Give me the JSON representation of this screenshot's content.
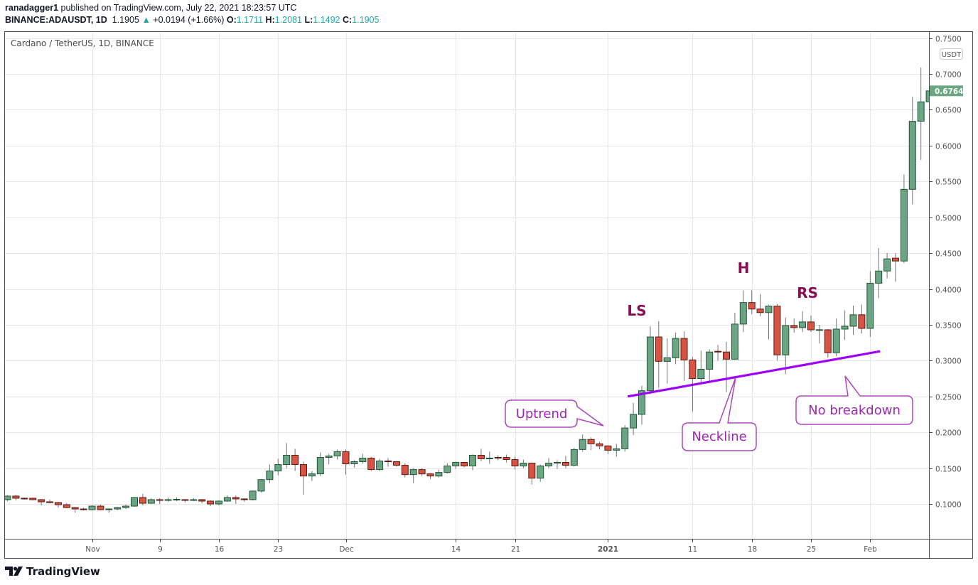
{
  "header": {
    "author": "ranadagger1",
    "published": "published on TradingView.com, July 22, 2021 18:23:57 UTC",
    "symbol": "BINANCE:ADAUSDT, 1D",
    "last": "1.1905",
    "change": "+0.0194 (+1.66%)",
    "o_label": "O:",
    "o": "1.1711",
    "h_label": "H:",
    "h": "1.2081",
    "l_label": "L:",
    "l": "1.1492",
    "c_label": "C:",
    "c": "1.1905",
    "up_icon": "triangle-up-icon"
  },
  "chart_title": "Cardano / TetherUS, 1D, BINANCE",
  "currency": "USDT",
  "last_price_label": "0.6764",
  "logo": "TradingView",
  "colors": {
    "up": "#6ba583",
    "up_border": "#225437",
    "down": "#d75442",
    "down_border": "#5b1a13",
    "wick": "#737375",
    "neckline": "#9c00ff",
    "callout": "#ab47bc",
    "pattern_label": "#880e4f"
  },
  "annotations": {
    "ls": "LS",
    "h": "H",
    "rs": "RS",
    "uptrend": "Uptrend",
    "neckline": "Neckline",
    "no_breakdown": "No breakdown"
  },
  "chart_data": {
    "type": "candlestick",
    "title": "Cardano / TetherUS, 1D, BINANCE",
    "ylim": [
      0.05,
      0.75
    ],
    "grid": true,
    "y_ticks": [
      "0.1000",
      "0.1500",
      "0.2000",
      "0.2500",
      "0.3000",
      "0.3500",
      "0.4000",
      "0.4500",
      "0.5000",
      "0.5500",
      "0.6000",
      "0.6500",
      "0.7000",
      "0.7500"
    ],
    "x_ticks": [
      {
        "label": "Nov",
        "date": "2020-11-01"
      },
      {
        "label": "9",
        "date": "2020-11-09"
      },
      {
        "label": "16",
        "date": "2020-11-16"
      },
      {
        "label": "23",
        "date": "2020-11-23"
      },
      {
        "label": "Dec",
        "date": "2020-12-01"
      },
      {
        "label": "14",
        "date": "2020-12-14"
      },
      {
        "label": "21",
        "date": "2020-12-21"
      },
      {
        "label": "2021",
        "date": "2021-01-01"
      },
      {
        "label": "11",
        "date": "2021-01-11"
      },
      {
        "label": "18",
        "date": "2021-01-18"
      },
      {
        "label": "25",
        "date": "2021-01-25"
      },
      {
        "label": "Feb",
        "date": "2021-02-01"
      }
    ],
    "neckline": [
      [
        "2021-01-04",
        0.25
      ],
      [
        "2021-02-01",
        0.313
      ]
    ],
    "columns": [
      "date",
      "open",
      "high",
      "low",
      "close"
    ],
    "candles": [
      [
        "2020-10-22",
        0.106,
        0.112,
        0.104,
        0.111
      ],
      [
        "2020-10-23",
        0.111,
        0.113,
        0.105,
        0.108
      ],
      [
        "2020-10-24",
        0.108,
        0.109,
        0.106,
        0.107
      ],
      [
        "2020-10-25",
        0.108,
        0.109,
        0.105,
        0.106
      ],
      [
        "2020-10-26",
        0.106,
        0.107,
        0.098,
        0.103
      ],
      [
        "2020-10-27",
        0.103,
        0.106,
        0.101,
        0.102
      ],
      [
        "2020-10-28",
        0.102,
        0.103,
        0.095,
        0.099
      ],
      [
        "2020-10-29",
        0.099,
        0.101,
        0.094,
        0.095
      ],
      [
        "2020-10-30",
        0.095,
        0.096,
        0.088,
        0.093
      ],
      [
        "2020-10-31",
        0.093,
        0.095,
        0.091,
        0.092
      ],
      [
        "2020-11-01",
        0.092,
        0.098,
        0.091,
        0.097
      ],
      [
        "2020-11-02",
        0.097,
        0.099,
        0.091,
        0.092
      ],
      [
        "2020-11-03",
        0.092,
        0.094,
        0.088,
        0.093
      ],
      [
        "2020-11-04",
        0.093,
        0.096,
        0.091,
        0.095
      ],
      [
        "2020-11-05",
        0.095,
        0.099,
        0.093,
        0.097
      ],
      [
        "2020-11-06",
        0.097,
        0.11,
        0.096,
        0.109
      ],
      [
        "2020-11-07",
        0.109,
        0.114,
        0.098,
        0.101
      ],
      [
        "2020-11-08",
        0.101,
        0.108,
        0.1,
        0.106
      ],
      [
        "2020-11-09",
        0.106,
        0.108,
        0.1,
        0.105
      ],
      [
        "2020-11-10",
        0.105,
        0.109,
        0.103,
        0.106
      ],
      [
        "2020-11-11",
        0.106,
        0.109,
        0.104,
        0.1065
      ],
      [
        "2020-11-12",
        0.106,
        0.107,
        0.102,
        0.105
      ],
      [
        "2020-11-13",
        0.105,
        0.108,
        0.104,
        0.106
      ],
      [
        "2020-11-14",
        0.106,
        0.107,
        0.101,
        0.104
      ],
      [
        "2020-11-15",
        0.104,
        0.105,
        0.097,
        0.1
      ],
      [
        "2020-11-16",
        0.1,
        0.105,
        0.098,
        0.104
      ],
      [
        "2020-11-17",
        0.104,
        0.112,
        0.103,
        0.109
      ],
      [
        "2020-11-18",
        0.109,
        0.112,
        0.1,
        0.107
      ],
      [
        "2020-11-19",
        0.107,
        0.108,
        0.103,
        0.106
      ],
      [
        "2020-11-20",
        0.106,
        0.119,
        0.105,
        0.118
      ],
      [
        "2020-11-21",
        0.118,
        0.135,
        0.116,
        0.134
      ],
      [
        "2020-11-22",
        0.134,
        0.155,
        0.129,
        0.146
      ],
      [
        "2020-11-23",
        0.146,
        0.163,
        0.14,
        0.155
      ],
      [
        "2020-11-24",
        0.155,
        0.185,
        0.15,
        0.168
      ],
      [
        "2020-11-25",
        0.168,
        0.177,
        0.146,
        0.155
      ],
      [
        "2020-11-26",
        0.155,
        0.159,
        0.113,
        0.139
      ],
      [
        "2020-11-27",
        0.139,
        0.146,
        0.132,
        0.142
      ],
      [
        "2020-11-28",
        0.142,
        0.172,
        0.139,
        0.165
      ],
      [
        "2020-11-29",
        0.165,
        0.17,
        0.155,
        0.167
      ],
      [
        "2020-11-30",
        0.167,
        0.176,
        0.162,
        0.173
      ],
      [
        "2020-12-01",
        0.173,
        0.176,
        0.141,
        0.156
      ],
      [
        "2020-12-02",
        0.156,
        0.161,
        0.151,
        0.159
      ],
      [
        "2020-12-03",
        0.159,
        0.17,
        0.156,
        0.164
      ],
      [
        "2020-12-04",
        0.164,
        0.166,
        0.146,
        0.148
      ],
      [
        "2020-12-05",
        0.148,
        0.163,
        0.146,
        0.16
      ],
      [
        "2020-12-06",
        0.16,
        0.164,
        0.152,
        0.159
      ],
      [
        "2020-12-07",
        0.159,
        0.16,
        0.152,
        0.154
      ],
      [
        "2020-12-08",
        0.154,
        0.157,
        0.137,
        0.141
      ],
      [
        "2020-12-09",
        0.141,
        0.15,
        0.129,
        0.148
      ],
      [
        "2020-12-10",
        0.148,
        0.15,
        0.139,
        0.142
      ],
      [
        "2020-12-11",
        0.142,
        0.143,
        0.135,
        0.139
      ],
      [
        "2020-12-12",
        0.139,
        0.148,
        0.137,
        0.144
      ],
      [
        "2020-12-13",
        0.144,
        0.157,
        0.142,
        0.153
      ],
      [
        "2020-12-14",
        0.153,
        0.159,
        0.149,
        0.158
      ],
      [
        "2020-12-15",
        0.158,
        0.159,
        0.151,
        0.153
      ],
      [
        "2020-12-16",
        0.153,
        0.169,
        0.147,
        0.168
      ],
      [
        "2020-12-17",
        0.168,
        0.177,
        0.16,
        0.163
      ],
      [
        "2020-12-18",
        0.163,
        0.173,
        0.156,
        0.164
      ],
      [
        "2020-12-19",
        0.165,
        0.168,
        0.161,
        0.164
      ],
      [
        "2020-12-20",
        0.165,
        0.169,
        0.158,
        0.162
      ],
      [
        "2020-12-21",
        0.162,
        0.166,
        0.148,
        0.153
      ],
      [
        "2020-12-22",
        0.153,
        0.162,
        0.15,
        0.157
      ],
      [
        "2020-12-23",
        0.157,
        0.158,
        0.127,
        0.136
      ],
      [
        "2020-12-24",
        0.136,
        0.155,
        0.131,
        0.153
      ],
      [
        "2020-12-25",
        0.153,
        0.164,
        0.15,
        0.157
      ],
      [
        "2020-12-26",
        0.157,
        0.161,
        0.149,
        0.158
      ],
      [
        "2020-12-27",
        0.158,
        0.167,
        0.15,
        0.154
      ],
      [
        "2020-12-28",
        0.154,
        0.178,
        0.152,
        0.176
      ],
      [
        "2020-12-29",
        0.176,
        0.197,
        0.173,
        0.19
      ],
      [
        "2020-12-30",
        0.19,
        0.193,
        0.175,
        0.184
      ],
      [
        "2020-12-31",
        0.184,
        0.187,
        0.176,
        0.181
      ],
      [
        "2021-01-01",
        0.181,
        0.182,
        0.17,
        0.175
      ],
      [
        "2021-01-02",
        0.175,
        0.184,
        0.166,
        0.177
      ],
      [
        "2021-01-03",
        0.177,
        0.21,
        0.173,
        0.206
      ],
      [
        "2021-01-04",
        0.206,
        0.241,
        0.196,
        0.225
      ],
      [
        "2021-01-05",
        0.225,
        0.265,
        0.211,
        0.258
      ],
      [
        "2021-01-06",
        0.258,
        0.348,
        0.253,
        0.333
      ],
      [
        "2021-01-07",
        0.333,
        0.355,
        0.262,
        0.299
      ],
      [
        "2021-01-08",
        0.299,
        0.331,
        0.268,
        0.304
      ],
      [
        "2021-01-09",
        0.304,
        0.339,
        0.295,
        0.331
      ],
      [
        "2021-01-10",
        0.331,
        0.341,
        0.272,
        0.301
      ],
      [
        "2021-01-11",
        0.301,
        0.305,
        0.229,
        0.275
      ],
      [
        "2021-01-12",
        0.275,
        0.314,
        0.267,
        0.288
      ],
      [
        "2021-01-13",
        0.288,
        0.316,
        0.272,
        0.312
      ],
      [
        "2021-01-14",
        0.313,
        0.322,
        0.3,
        0.312
      ],
      [
        "2021-01-15",
        0.312,
        0.326,
        0.256,
        0.302
      ],
      [
        "2021-01-16",
        0.302,
        0.367,
        0.301,
        0.351
      ],
      [
        "2021-01-17",
        0.351,
        0.398,
        0.34,
        0.381
      ],
      [
        "2021-01-18",
        0.381,
        0.398,
        0.365,
        0.372
      ],
      [
        "2021-01-19",
        0.372,
        0.393,
        0.362,
        0.367
      ],
      [
        "2021-01-20",
        0.367,
        0.378,
        0.33,
        0.376
      ],
      [
        "2021-01-21",
        0.376,
        0.379,
        0.3,
        0.308
      ],
      [
        "2021-01-22",
        0.308,
        0.36,
        0.281,
        0.349
      ],
      [
        "2021-01-23",
        0.349,
        0.359,
        0.339,
        0.346
      ],
      [
        "2021-01-24",
        0.346,
        0.369,
        0.34,
        0.354
      ],
      [
        "2021-01-25",
        0.354,
        0.363,
        0.34,
        0.343
      ],
      [
        "2021-01-26",
        0.343,
        0.35,
        0.324,
        0.3432
      ],
      [
        "2021-01-27",
        0.343,
        0.344,
        0.304,
        0.311
      ],
      [
        "2021-01-28",
        0.311,
        0.359,
        0.306,
        0.344
      ],
      [
        "2021-01-29",
        0.344,
        0.37,
        0.329,
        0.348
      ],
      [
        "2021-01-30",
        0.348,
        0.377,
        0.336,
        0.364
      ],
      [
        "2021-01-31",
        0.364,
        0.378,
        0.338,
        0.345
      ],
      [
        "2021-02-01",
        0.345,
        0.425,
        0.333,
        0.408
      ],
      [
        "2021-02-02",
        0.408,
        0.457,
        0.387,
        0.425
      ],
      [
        "2021-02-03",
        0.425,
        0.45,
        0.415,
        0.442
      ],
      [
        "2021-02-04",
        0.443,
        0.45,
        0.41,
        0.439
      ],
      [
        "2021-02-05",
        0.439,
        0.56,
        0.436,
        0.539
      ],
      [
        "2021-02-06",
        0.539,
        0.668,
        0.518,
        0.634
      ],
      [
        "2021-02-07",
        0.634,
        0.709,
        0.58,
        0.661
      ],
      [
        "2021-02-08",
        0.661,
        0.676,
        0.658,
        0.6764
      ]
    ]
  }
}
